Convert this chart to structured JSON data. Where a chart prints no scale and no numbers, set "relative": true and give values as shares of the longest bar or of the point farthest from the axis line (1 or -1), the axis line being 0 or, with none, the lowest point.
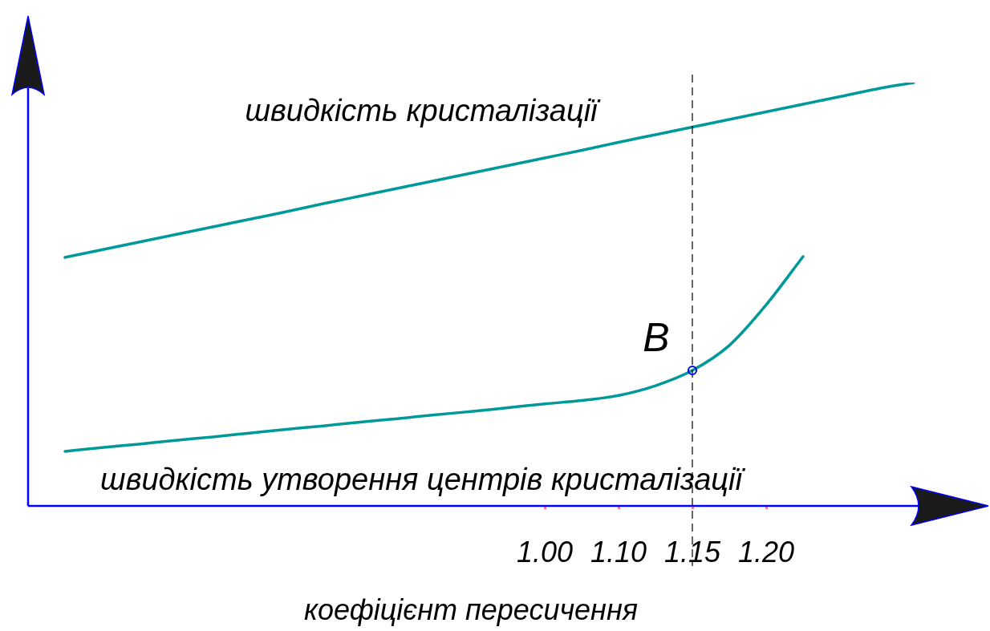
{
  "chart_data": {
    "type": "line",
    "relative": true,
    "xlabel": "коефіцієнт пересичення",
    "categories": [
      null,
      null,
      null,
      null,
      null,
      null,
      null,
      null,
      null,
      null,
      null,
      null,
      null,
      null,
      "1.00",
      null,
      "1.10",
      null,
      "1.15",
      null,
      "1.20",
      null,
      null,
      null,
      null
    ],
    "series": [
      {
        "name": "швидкість кристалізації",
        "color": "#009999",
        "values": [
          null,
          0.587,
          0.605,
          0.623,
          0.641,
          0.659,
          0.677,
          0.695,
          0.714,
          0.732,
          0.75,
          0.768,
          0.786,
          0.804,
          0.822,
          0.84,
          0.859,
          0.877,
          0.895,
          0.913,
          0.931,
          0.949,
          0.967,
          0.985,
          1.0
        ]
      },
      {
        "name": "швидкість утворення центрів кристалізації",
        "color": "#009999",
        "values": [
          null,
          0.129,
          0.138,
          0.146,
          0.155,
          0.163,
          0.172,
          0.181,
          0.189,
          0.198,
          0.206,
          0.215,
          0.223,
          0.232,
          0.241,
          0.249,
          0.261,
          0.284,
          0.32,
          0.379,
          0.475,
          0.589,
          null,
          null,
          null
        ]
      }
    ],
    "ref_lines": [
      {
        "axis": "x",
        "value": "1.15",
        "line_style": "dashed",
        "color": "#000000"
      }
    ],
    "annotations": [
      {
        "text": "B",
        "x": "1.15",
        "y": 0.32
      }
    ],
    "grid": false,
    "legend": false,
    "marker": "none",
    "line_style": "solid"
  }
}
